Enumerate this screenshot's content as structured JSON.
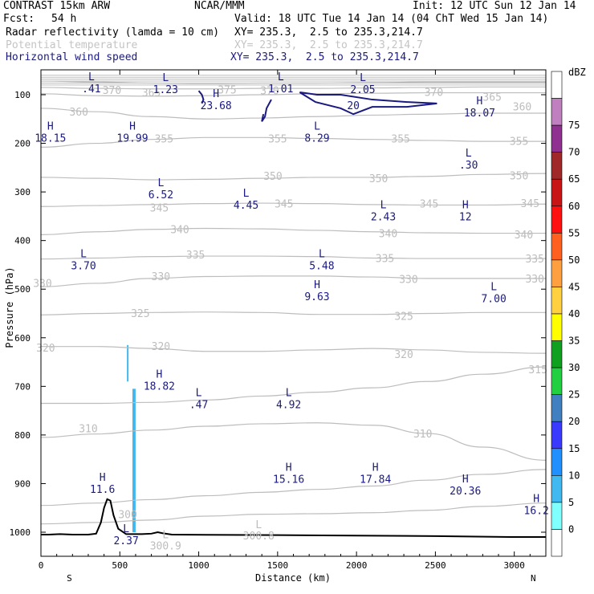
{
  "header": {
    "title": "CONTRAST 15km ARW",
    "center": "NCAR/MMM",
    "init": "Init: 12 UTC Sun 12 Jan 14",
    "fcst_label": "Fcst:",
    "fcst_value": "54 h",
    "valid": "Valid: 18 UTC Tue 14 Jan 14 (04 ChT Wed 15 Jan 14)",
    "field1": "Radar reflectivity (lamda = 10 cm)",
    "field1_xy": "XY= 235.3,  2.5 to 235.3,214.7",
    "field2": "Potential temperature",
    "field2_xy": "XY= 235.3,  2.5 to 235.3,214.7",
    "field3": "Horizontal wind speed",
    "field3_xy": "XY= 235.3,  2.5 to 235.3,214.7"
  },
  "colors": {
    "wind_contour": "#1a1a80",
    "theta_contour": "#bdbdbd",
    "terrain": "#000000",
    "reflectivity_low": "#80ffff"
  },
  "chart_data": {
    "type": "contour",
    "xlabel": "Distance (km)",
    "ylabel": "Pressure (hPa)",
    "xlim": [
      0,
      3200
    ],
    "ylim": [
      1050,
      50
    ],
    "xticks": [
      0,
      500,
      1000,
      1500,
      2000,
      2500,
      3000
    ],
    "yticks": [
      100,
      200,
      300,
      400,
      500,
      600,
      700,
      800,
      900,
      1000
    ],
    "x_end_labels": [
      "S",
      "N"
    ],
    "colorbar": {
      "title": "dBZ",
      "levels": [
        0,
        5,
        10,
        15,
        20,
        25,
        30,
        35,
        40,
        45,
        50,
        55,
        60,
        65,
        70,
        75
      ],
      "colors": [
        "#ffffff",
        "#80ffff",
        "#40b8f0",
        "#2090ff",
        "#3a3aff",
        "#4080c0",
        "#20d040",
        "#10a020",
        "#ffff00",
        "#ffd040",
        "#ffa040",
        "#ff6020",
        "#ff1010",
        "#c81414",
        "#a02828",
        "#903090",
        "#c080c0",
        "#ffffff"
      ]
    },
    "theta_contours": [
      {
        "value": 300,
        "label": "300",
        "p": [
          983,
          980,
          975,
          967,
          963,
          962,
          960,
          955,
          947,
          940
        ],
        "labels_at": [
          [
            550,
            963
          ]
        ]
      },
      {
        "value": 305,
        "label": "",
        "p": [
          945,
          940,
          933,
          925,
          918,
          912,
          905,
          893,
          881,
          871
        ]
      },
      {
        "value": 310,
        "label": "310",
        "p": [
          805,
          798,
          790,
          782,
          777,
          775,
          780,
          797,
          825,
          852
        ],
        "labels_at": [
          [
            300,
            786
          ],
          [
            2420,
            797
          ]
        ]
      },
      {
        "value": 315,
        "label": "315",
        "p": [
          735,
          735,
          733,
          728,
          720,
          712,
          703,
          690,
          675,
          660
        ],
        "labels_at": [
          [
            3150,
            665
          ]
        ]
      },
      {
        "value": 320,
        "label": "320",
        "p": [
          618,
          618,
          622,
          628,
          628,
          625,
          622,
          625,
          630,
          632
        ],
        "labels_at": [
          [
            30,
            620
          ],
          [
            760,
            617
          ],
          [
            2300,
            633
          ]
        ]
      },
      {
        "value": 325,
        "label": "325",
        "p": [
          553,
          550,
          548,
          547,
          548,
          552,
          552,
          550,
          548,
          548
        ],
        "labels_at": [
          [
            630,
            549
          ],
          [
            2300,
            555
          ]
        ]
      },
      {
        "value": 330,
        "label": "330",
        "p": [
          495,
          488,
          478,
          474,
          473,
          473,
          475,
          478,
          478,
          478
        ],
        "labels_at": [
          [
            10,
            487
          ],
          [
            760,
            473
          ],
          [
            2330,
            479
          ],
          [
            3130,
            478
          ]
        ]
      },
      {
        "value": 335,
        "label": "335",
        "p": [
          438,
          436,
          433,
          432,
          432,
          433,
          436,
          437,
          437,
          437
        ],
        "labels_at": [
          [
            980,
            429
          ],
          [
            2180,
            436
          ],
          [
            3130,
            437
          ]
        ]
      },
      {
        "value": 340,
        "label": "340",
        "p": [
          388,
          382,
          377,
          375,
          376,
          379,
          382,
          384,
          385,
          385
        ],
        "labels_at": [
          [
            880,
            377
          ],
          [
            2200,
            385
          ],
          [
            3060,
            387
          ]
        ]
      },
      {
        "value": 345,
        "label": "345",
        "p": [
          330,
          328,
          326,
          324,
          323,
          324,
          326,
          327,
          327,
          325
        ],
        "labels_at": [
          [
            750,
            332
          ],
          [
            1540,
            324
          ],
          [
            2460,
            324
          ],
          [
            3100,
            323
          ]
        ]
      },
      {
        "value": 350,
        "label": "350",
        "p": [
          270,
          272,
          275,
          274,
          272,
          270,
          270,
          268,
          264,
          262
        ],
        "labels_at": [
          [
            1470,
            267
          ],
          [
            2140,
            272
          ],
          [
            3030,
            266
          ]
        ]
      },
      {
        "value": 355,
        "label": "355",
        "p": [
          208,
          200,
          192,
          188,
          188,
          190,
          192,
          194,
          196,
          196
        ],
        "labels_at": [
          [
            780,
            190
          ],
          [
            1500,
            190
          ],
          [
            2280,
            190
          ],
          [
            3030,
            195
          ]
        ]
      },
      {
        "value": 360,
        "label": "360",
        "p": [
          128,
          135,
          145,
          150,
          148,
          145,
          142,
          140,
          138,
          138
        ],
        "labels_at": [
          [
            240,
            135
          ],
          [
            3050,
            124
          ]
        ]
      },
      {
        "value": 365,
        "label": "365",
        "p": [
          98,
          102,
          103,
          102,
          100,
          98,
          97,
          96,
          96,
          96
        ],
        "labels_at": [
          [
            700,
            95
          ],
          [
            2860,
            104
          ]
        ]
      },
      {
        "value": 370,
        "label": "370",
        "p": [
          85,
          87,
          88,
          88,
          87,
          87,
          86,
          85,
          84,
          84
        ],
        "labels_at": [
          [
            450,
            90
          ],
          [
            1450,
            91
          ],
          [
            2490,
            94
          ]
        ]
      },
      {
        "value": 375,
        "label": "375",
        "p": [
          72,
          74,
          76,
          77,
          76,
          76,
          75,
          74,
          74,
          74
        ],
        "labels_at": [
          [
            1180,
            89
          ]
        ]
      }
    ],
    "theta_x": [
      0,
      350,
      700,
      1050,
      1400,
      1750,
      2100,
      2450,
      2800,
      3200
    ],
    "wind_contours": [
      {
        "value": 20,
        "label": "20",
        "points": [
          [
            1640,
            95
          ],
          [
            1750,
            100
          ],
          [
            1900,
            100
          ],
          [
            2100,
            110
          ],
          [
            2320,
            115
          ],
          [
            2510,
            118
          ],
          [
            2320,
            125
          ],
          [
            2100,
            125
          ],
          [
            1980,
            140
          ],
          [
            1900,
            128
          ],
          [
            1740,
            115
          ],
          [
            1640,
            95
          ]
        ]
      },
      {
        "value": 20,
        "label": "",
        "points": [
          [
            1460,
            110
          ],
          [
            1430,
            128
          ],
          [
            1420,
            145
          ],
          [
            1400,
            155
          ],
          [
            1410,
            140
          ]
        ]
      },
      {
        "value": 20,
        "label": "",
        "points": [
          [
            1000,
            92
          ],
          [
            1020,
            100
          ],
          [
            1030,
            110
          ],
          [
            1020,
            118
          ]
        ]
      }
    ],
    "wind_extrema": [
      {
        "type": "L",
        "x": 320,
        "p": 70,
        "value": ".41"
      },
      {
        "type": "L",
        "x": 790,
        "p": 72,
        "value": "1.23"
      },
      {
        "type": "H",
        "x": 1110,
        "p": 105,
        "value": "23.68"
      },
      {
        "type": "L",
        "x": 1520,
        "p": 70,
        "value": "1.01"
      },
      {
        "type": "L",
        "x": 2040,
        "p": 72,
        "value": "2.05"
      },
      {
        "type": "H",
        "x": 2780,
        "p": 120,
        "value": "18.07"
      },
      {
        "type": "H",
        "x": 60,
        "p": 172,
        "value": "18.15"
      },
      {
        "type": "H",
        "x": 580,
        "p": 172,
        "value": "19.99"
      },
      {
        "type": "L",
        "x": 1750,
        "p": 172,
        "value": "8.29"
      },
      {
        "type": "L",
        "x": 2710,
        "p": 227,
        "value": ".30"
      },
      {
        "type": "L",
        "x": 760,
        "p": 288,
        "value": "6.52"
      },
      {
        "type": "L",
        "x": 1300,
        "p": 310,
        "value": "4.45"
      },
      {
        "type": "L",
        "x": 2170,
        "p": 334,
        "value": "2.43"
      },
      {
        "type": "H",
        "x": 2690,
        "p": 334,
        "value": "12"
      },
      {
        "type": "L",
        "x": 270,
        "p": 434,
        "value": "3.70"
      },
      {
        "type": "L",
        "x": 1780,
        "p": 434,
        "value": "5.48"
      },
      {
        "type": "H",
        "x": 1750,
        "p": 498,
        "value": "9.63"
      },
      {
        "type": "L",
        "x": 2870,
        "p": 502,
        "value": "7.00"
      },
      {
        "type": "H",
        "x": 750,
        "p": 682,
        "value": "18.82"
      },
      {
        "type": "L",
        "x": 1000,
        "p": 720,
        "value": ".47"
      },
      {
        "type": "L",
        "x": 1570,
        "p": 720,
        "value": "4.92"
      },
      {
        "type": "H",
        "x": 1570,
        "p": 874,
        "value": "15.16"
      },
      {
        "type": "H",
        "x": 2120,
        "p": 874,
        "value": "17.84"
      },
      {
        "type": "H",
        "x": 390,
        "p": 894,
        "value": "11.6"
      },
      {
        "type": "H",
        "x": 2690,
        "p": 898,
        "value": "20.36"
      },
      {
        "type": "H",
        "x": 3140,
        "p": 938,
        "value": "16.2"
      },
      {
        "type": "L",
        "x": 540,
        "p": 1000,
        "value": "2.37"
      }
    ],
    "theta_surface_labels": [
      {
        "x": 790,
        "p": 1012,
        "value": "L",
        "sub": "300.9"
      },
      {
        "x": 1380,
        "p": 992,
        "value": "L",
        "sub": "300.8"
      }
    ],
    "terrain": [
      [
        0,
        1005
      ],
      [
        50,
        1005
      ],
      [
        120,
        1004
      ],
      [
        200,
        1005
      ],
      [
        300,
        1005
      ],
      [
        350,
        1003
      ],
      [
        380,
        980
      ],
      [
        400,
        950
      ],
      [
        420,
        932
      ],
      [
        440,
        935
      ],
      [
        460,
        965
      ],
      [
        490,
        993
      ],
      [
        540,
        1004
      ],
      [
        640,
        1004
      ],
      [
        700,
        1003
      ],
      [
        740,
        1000
      ],
      [
        770,
        1002
      ],
      [
        830,
        1005
      ],
      [
        1500,
        1006
      ],
      [
        2000,
        1007
      ],
      [
        2500,
        1008
      ],
      [
        3000,
        1010
      ],
      [
        3200,
        1010
      ]
    ],
    "reflectivity": [
      {
        "dbz": 5,
        "x0": 545,
        "x1": 555,
        "p0": 615,
        "p1": 690
      },
      {
        "dbz": 5,
        "x0": 580,
        "x1": 600,
        "p0": 705,
        "p1": 1000
      }
    ]
  }
}
